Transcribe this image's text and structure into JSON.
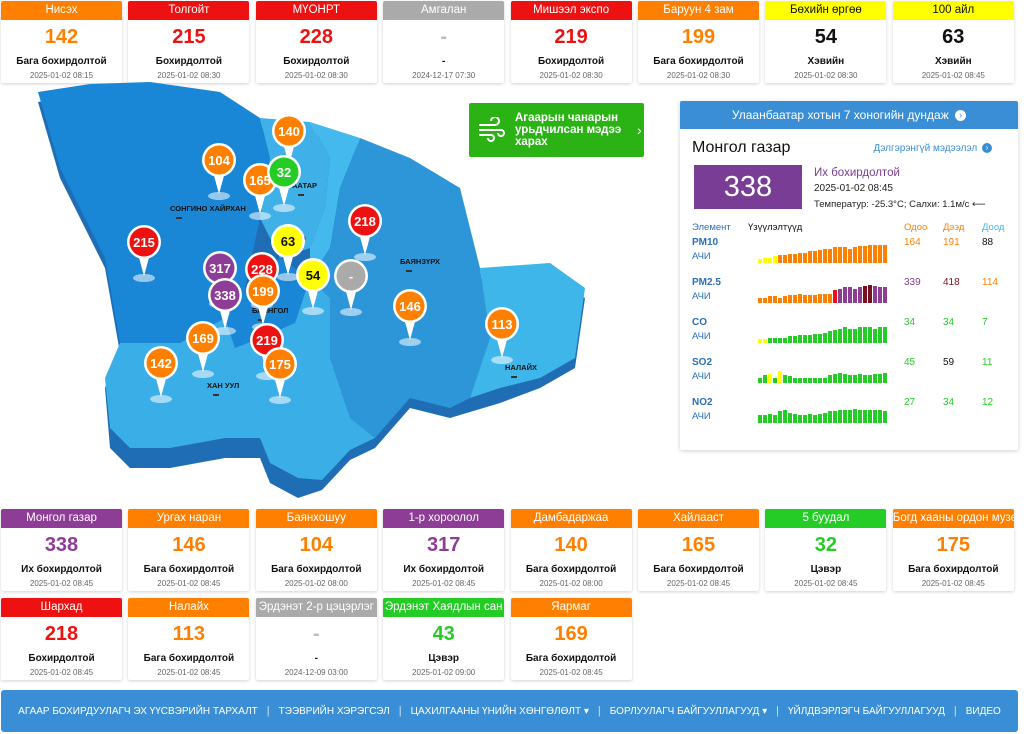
{
  "colors": {
    "green": "#25cc25",
    "yellow": "#ffff00",
    "orange": "#ff8000",
    "red": "#ee1111",
    "purple": "#8e3d96",
    "gray": "#aaaaaa"
  },
  "top_stations": [
    {
      "name": "Нисэх",
      "value": "142",
      "level": "Бага бохирдолтой",
      "time": "2025-01-02 08:15",
      "color": "orange"
    },
    {
      "name": "Толгойт",
      "value": "215",
      "level": "Бохирдолтой",
      "time": "2025-01-02 08:30",
      "color": "red"
    },
    {
      "name": "МҮОНРТ",
      "value": "228",
      "level": "Бохирдолтой",
      "time": "2025-01-02 08:30",
      "color": "red"
    },
    {
      "name": "Амгалан",
      "value": "-",
      "level": "-",
      "time": "2024-12-17 07:30",
      "color": "gray"
    },
    {
      "name": "Мишээл экспо",
      "value": "219",
      "level": "Бохирдолтой",
      "time": "2025-01-02 08:30",
      "color": "red"
    },
    {
      "name": "Баруун 4 зам",
      "value": "199",
      "level": "Бага бохирдолтой",
      "time": "2025-01-02 08:30",
      "color": "orange"
    },
    {
      "name": "Бөхийн өргөө",
      "value": "54",
      "level": "Хэвийн",
      "time": "2025-01-02 08:30",
      "color": "yellow"
    },
    {
      "name": "100 айл",
      "value": "63",
      "level": "Хэвийн",
      "time": "2025-01-02 08:45",
      "color": "yellow"
    }
  ],
  "middle_stations": [
    {
      "name": "Монгол газар",
      "value": "338",
      "level": "Их бохирдолтой",
      "time": "2025-01-02 08:45",
      "color": "purple"
    },
    {
      "name": "Ургах наран",
      "value": "146",
      "level": "Бага бохирдолтой",
      "time": "2025-01-02 08:45",
      "color": "orange"
    },
    {
      "name": "Баянхошуу",
      "value": "104",
      "level": "Бага бохирдолтой",
      "time": "2025-01-02 08:00",
      "color": "orange"
    },
    {
      "name": "1-р хороолол",
      "value": "317",
      "level": "Их бохирдолтой",
      "time": "2025-01-02 08:45",
      "color": "purple"
    },
    {
      "name": "Дамбадаржаа",
      "value": "140",
      "level": "Бага бохирдолтой",
      "time": "2025-01-02 08:00",
      "color": "orange"
    },
    {
      "name": "Хайлааст",
      "value": "165",
      "level": "Бага бохирдолтой",
      "time": "2025-01-02 08:45",
      "color": "orange"
    },
    {
      "name": "5 буудал",
      "value": "32",
      "level": "Цэвэр",
      "time": "2025-01-02 08:45",
      "color": "green"
    },
    {
      "name": "Богд хааны ордон музей",
      "value": "175",
      "level": "Бага бохирдолтой",
      "time": "2025-01-02 08:45",
      "color": "orange"
    }
  ],
  "bottom_stations": [
    {
      "name": "Шархад",
      "value": "218",
      "level": "Бохирдолтой",
      "time": "2025-01-02 08:45",
      "color": "red"
    },
    {
      "name": "Налайх",
      "value": "113",
      "level": "Бага бохирдолтой",
      "time": "2025-01-02 08:45",
      "color": "orange"
    },
    {
      "name": "Эрдэнэт 2-р цэцэрлэг",
      "value": "-",
      "level": "-",
      "time": "2024-12-09 03:00",
      "color": "gray"
    },
    {
      "name": "Эрдэнэт Хаядлын сан",
      "value": "43",
      "level": "Цэвэр",
      "time": "2025-01-02 09:00",
      "color": "green"
    },
    {
      "name": "Яармаг",
      "value": "169",
      "level": "Бага бохирдолтой",
      "time": "2025-01-02 08:45",
      "color": "orange"
    }
  ],
  "map": {
    "pins": [
      {
        "value": "140",
        "color": "orange"
      },
      {
        "value": "104",
        "color": "orange"
      },
      {
        "value": "165",
        "color": "orange"
      },
      {
        "value": "32",
        "color": "green"
      },
      {
        "value": "218",
        "color": "red"
      },
      {
        "value": "215",
        "color": "red"
      },
      {
        "value": "63",
        "color": "yellow"
      },
      {
        "value": "317",
        "color": "purple"
      },
      {
        "value": "228",
        "color": "red"
      },
      {
        "value": "54",
        "color": "yellow"
      },
      {
        "value": "-",
        "color": "gray"
      },
      {
        "value": "338",
        "color": "purple"
      },
      {
        "value": "199",
        "color": "orange"
      },
      {
        "value": "146",
        "color": "orange"
      },
      {
        "value": "113",
        "color": "orange"
      },
      {
        "value": "169",
        "color": "orange"
      },
      {
        "value": "219",
        "color": "red"
      },
      {
        "value": "142",
        "color": "orange"
      },
      {
        "value": "175",
        "color": "orange"
      }
    ],
    "district_labels": [
      "СОНГИНО ХАЙРХАН",
      "ЧИНГЭ",
      "ААТАР",
      "БАЯНЗҮРХ",
      "БАЯНГОЛ",
      "ХАН УУЛ",
      "НАЛАЙХ"
    ]
  },
  "forecast_button": {
    "label": "Агаарын чанарын урьдчилсан мэдээ харах",
    "icon": "wind-icon"
  },
  "panel": {
    "header": "Улаанбаатар хотын 7 хоногийн дундаж",
    "station": "Монгол газар",
    "more_link": "Дэлгэрэнгүй мэдээлэл",
    "value": "338",
    "level": "Их бохирдолтой",
    "time": "2025-01-02 08:45",
    "meta": "Температур: -25.3°C; Салхи: 1.1м/с",
    "columns": {
      "element": "Элемент",
      "indicators": "Үзүүлэлтүүд",
      "now": "Одоо",
      "max": "Дээд",
      "min": "Доод"
    },
    "pollutants": [
      {
        "name": "PM10",
        "unit": "АЧИ",
        "now": "164",
        "max": "191",
        "min": "88",
        "now_color": "orange",
        "max_color": "orange",
        "min_color": "black",
        "bars": [
          0.15,
          0.2,
          0.2,
          0.25,
          0.3,
          0.3,
          0.35,
          0.35,
          0.4,
          0.4,
          0.45,
          0.45,
          0.5,
          0.55,
          0.55,
          0.6,
          0.6,
          0.6,
          0.55,
          0.6,
          0.65,
          0.65,
          0.7,
          0.7,
          0.7,
          0.7
        ],
        "bar_colors": [
          "yellow",
          "yellow",
          "yellow",
          "yellow",
          "orange",
          "orange",
          "orange",
          "orange",
          "orange",
          "orange",
          "orange",
          "orange",
          "orange",
          "orange",
          "orange",
          "orange",
          "orange",
          "orange",
          "orange",
          "orange",
          "orange",
          "orange",
          "orange",
          "orange",
          "orange",
          "orange"
        ]
      },
      {
        "name": "PM2.5",
        "unit": "АЧИ",
        "now": "339",
        "max": "418",
        "min": "114",
        "now_color": "purple",
        "max_color": "darkred",
        "min_color": "orange",
        "bars": [
          0.2,
          0.2,
          0.25,
          0.25,
          0.2,
          0.25,
          0.3,
          0.3,
          0.35,
          0.3,
          0.3,
          0.3,
          0.35,
          0.35,
          0.35,
          0.5,
          0.55,
          0.6,
          0.6,
          0.55,
          0.6,
          0.65,
          0.7,
          0.65,
          0.6,
          0.6
        ],
        "bar_colors": [
          "orange",
          "orange",
          "orange",
          "orange",
          "orange",
          "orange",
          "orange",
          "orange",
          "orange",
          "orange",
          "orange",
          "orange",
          "orange",
          "orange",
          "orange",
          "red",
          "purple",
          "purple",
          "purple",
          "purple",
          "purple",
          "darkred",
          "darkred",
          "purple",
          "purple",
          "purple"
        ]
      },
      {
        "name": "CO",
        "unit": "АЧИ",
        "now": "34",
        "max": "34",
        "min": "7",
        "now_color": "green",
        "max_color": "green",
        "min_color": "green",
        "bars": [
          0.15,
          0.15,
          0.2,
          0.2,
          0.2,
          0.2,
          0.25,
          0.25,
          0.3,
          0.3,
          0.3,
          0.35,
          0.35,
          0.4,
          0.45,
          0.5,
          0.55,
          0.6,
          0.55,
          0.55,
          0.6,
          0.6,
          0.6,
          0.55,
          0.6,
          0.6
        ],
        "bar_colors": [
          "yellow",
          "yellow",
          "green",
          "green",
          "green",
          "green",
          "green",
          "green",
          "green",
          "green",
          "green",
          "green",
          "green",
          "green",
          "green",
          "green",
          "green",
          "green",
          "green",
          "green",
          "green",
          "green",
          "green",
          "green",
          "green",
          "green"
        ]
      },
      {
        "name": "SO2",
        "unit": "АЧИ",
        "now": "45",
        "max": "59",
        "min": "11",
        "now_color": "green",
        "max_color": "black",
        "min_color": "green",
        "bars": [
          0.2,
          0.3,
          0.35,
          0.2,
          0.45,
          0.3,
          0.25,
          0.2,
          0.2,
          0.2,
          0.2,
          0.2,
          0.2,
          0.2,
          0.3,
          0.35,
          0.4,
          0.35,
          0.3,
          0.3,
          0.35,
          0.3,
          0.3,
          0.35,
          0.35,
          0.4
        ],
        "bar_colors": [
          "green",
          "green",
          "yellow",
          "green",
          "yellow",
          "green",
          "green",
          "green",
          "green",
          "green",
          "green",
          "green",
          "green",
          "green",
          "green",
          "green",
          "green",
          "green",
          "green",
          "green",
          "green",
          "green",
          "green",
          "green",
          "green",
          "green"
        ]
      },
      {
        "name": "NO2",
        "unit": "АЧИ",
        "now": "27",
        "max": "34",
        "min": "12",
        "now_color": "green",
        "max_color": "green",
        "min_color": "green",
        "bars": [
          0.3,
          0.3,
          0.35,
          0.3,
          0.45,
          0.5,
          0.4,
          0.35,
          0.3,
          0.3,
          0.35,
          0.3,
          0.35,
          0.4,
          0.45,
          0.45,
          0.5,
          0.5,
          0.5,
          0.55,
          0.5,
          0.5,
          0.5,
          0.5,
          0.5,
          0.45
        ],
        "bar_colors": [
          "green",
          "green",
          "green",
          "green",
          "green",
          "green",
          "green",
          "green",
          "green",
          "green",
          "green",
          "green",
          "green",
          "green",
          "green",
          "green",
          "green",
          "green",
          "green",
          "green",
          "green",
          "green",
          "green",
          "green",
          "green",
          "green"
        ]
      }
    ]
  },
  "nav": [
    "АГААР БОХИРДУУЛАГЧ ЭХ ҮҮСВЭРИЙН ТАРХАЛТ",
    "ТЭЭВРИЙН ХЭРЭГСЭЛ",
    "ЦАХИЛГААНЫ ҮНИЙН ХӨНГӨЛӨЛТ",
    "БОРЛУУЛАГЧ БАЙГУУЛЛАГУУД",
    "ҮЙЛДВЭРЛЭГЧ БАЙГУУЛЛАГУУД",
    "ВИДЕО"
  ],
  "nav_dropdown": [
    false,
    false,
    true,
    true,
    false,
    false
  ]
}
